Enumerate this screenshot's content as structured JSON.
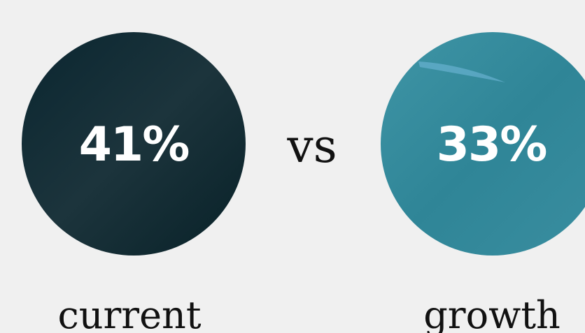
{
  "items": [
    {
      "value": "41%",
      "label": "current"
    },
    {
      "value": "33%",
      "label": "growth"
    }
  ],
  "separator": "vs"
}
